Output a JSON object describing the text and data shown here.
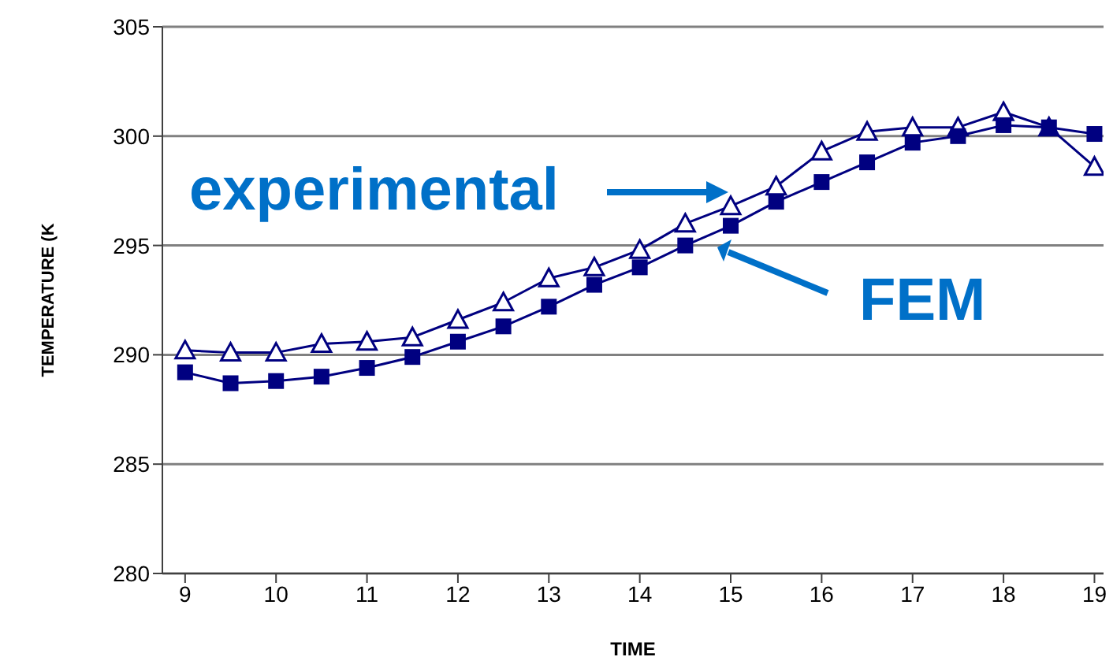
{
  "chart_data": {
    "type": "line",
    "xlabel": "TIME",
    "ylabel": "TEMPERATURE (K",
    "x": [
      9,
      9.5,
      10,
      10.5,
      11,
      11.5,
      12,
      12.5,
      13,
      13.5,
      14,
      14.5,
      15,
      15.5,
      16,
      16.5,
      17,
      17.5,
      18,
      18.5,
      19
    ],
    "series": [
      {
        "name": "experimental",
        "color": "#000080",
        "marker": "triangle",
        "values": [
          290.2,
          290.1,
          290.1,
          290.5,
          290.6,
          290.8,
          291.6,
          292.4,
          293.5,
          294.0,
          294.8,
          296.0,
          296.8,
          297.7,
          299.3,
          300.2,
          300.4,
          300.4,
          301.1,
          300.4,
          298.6
        ]
      },
      {
        "name": "FEM",
        "color": "#000080",
        "marker": "square",
        "values": [
          289.2,
          288.7,
          288.8,
          289.0,
          289.4,
          289.9,
          290.6,
          291.3,
          292.2,
          293.2,
          294.0,
          295.0,
          295.9,
          297.0,
          297.9,
          298.8,
          299.7,
          300.0,
          300.5,
          300.4,
          300.1
        ]
      }
    ],
    "xlim": [
      8.75,
      19.1
    ],
    "xticks": [
      9,
      10,
      11,
      12,
      13,
      14,
      15,
      16,
      17,
      18,
      19
    ],
    "ylim": [
      280,
      305
    ],
    "yticks": [
      280,
      285,
      290,
      295,
      300,
      305
    ],
    "grid": "y",
    "legend": false
  }
}
